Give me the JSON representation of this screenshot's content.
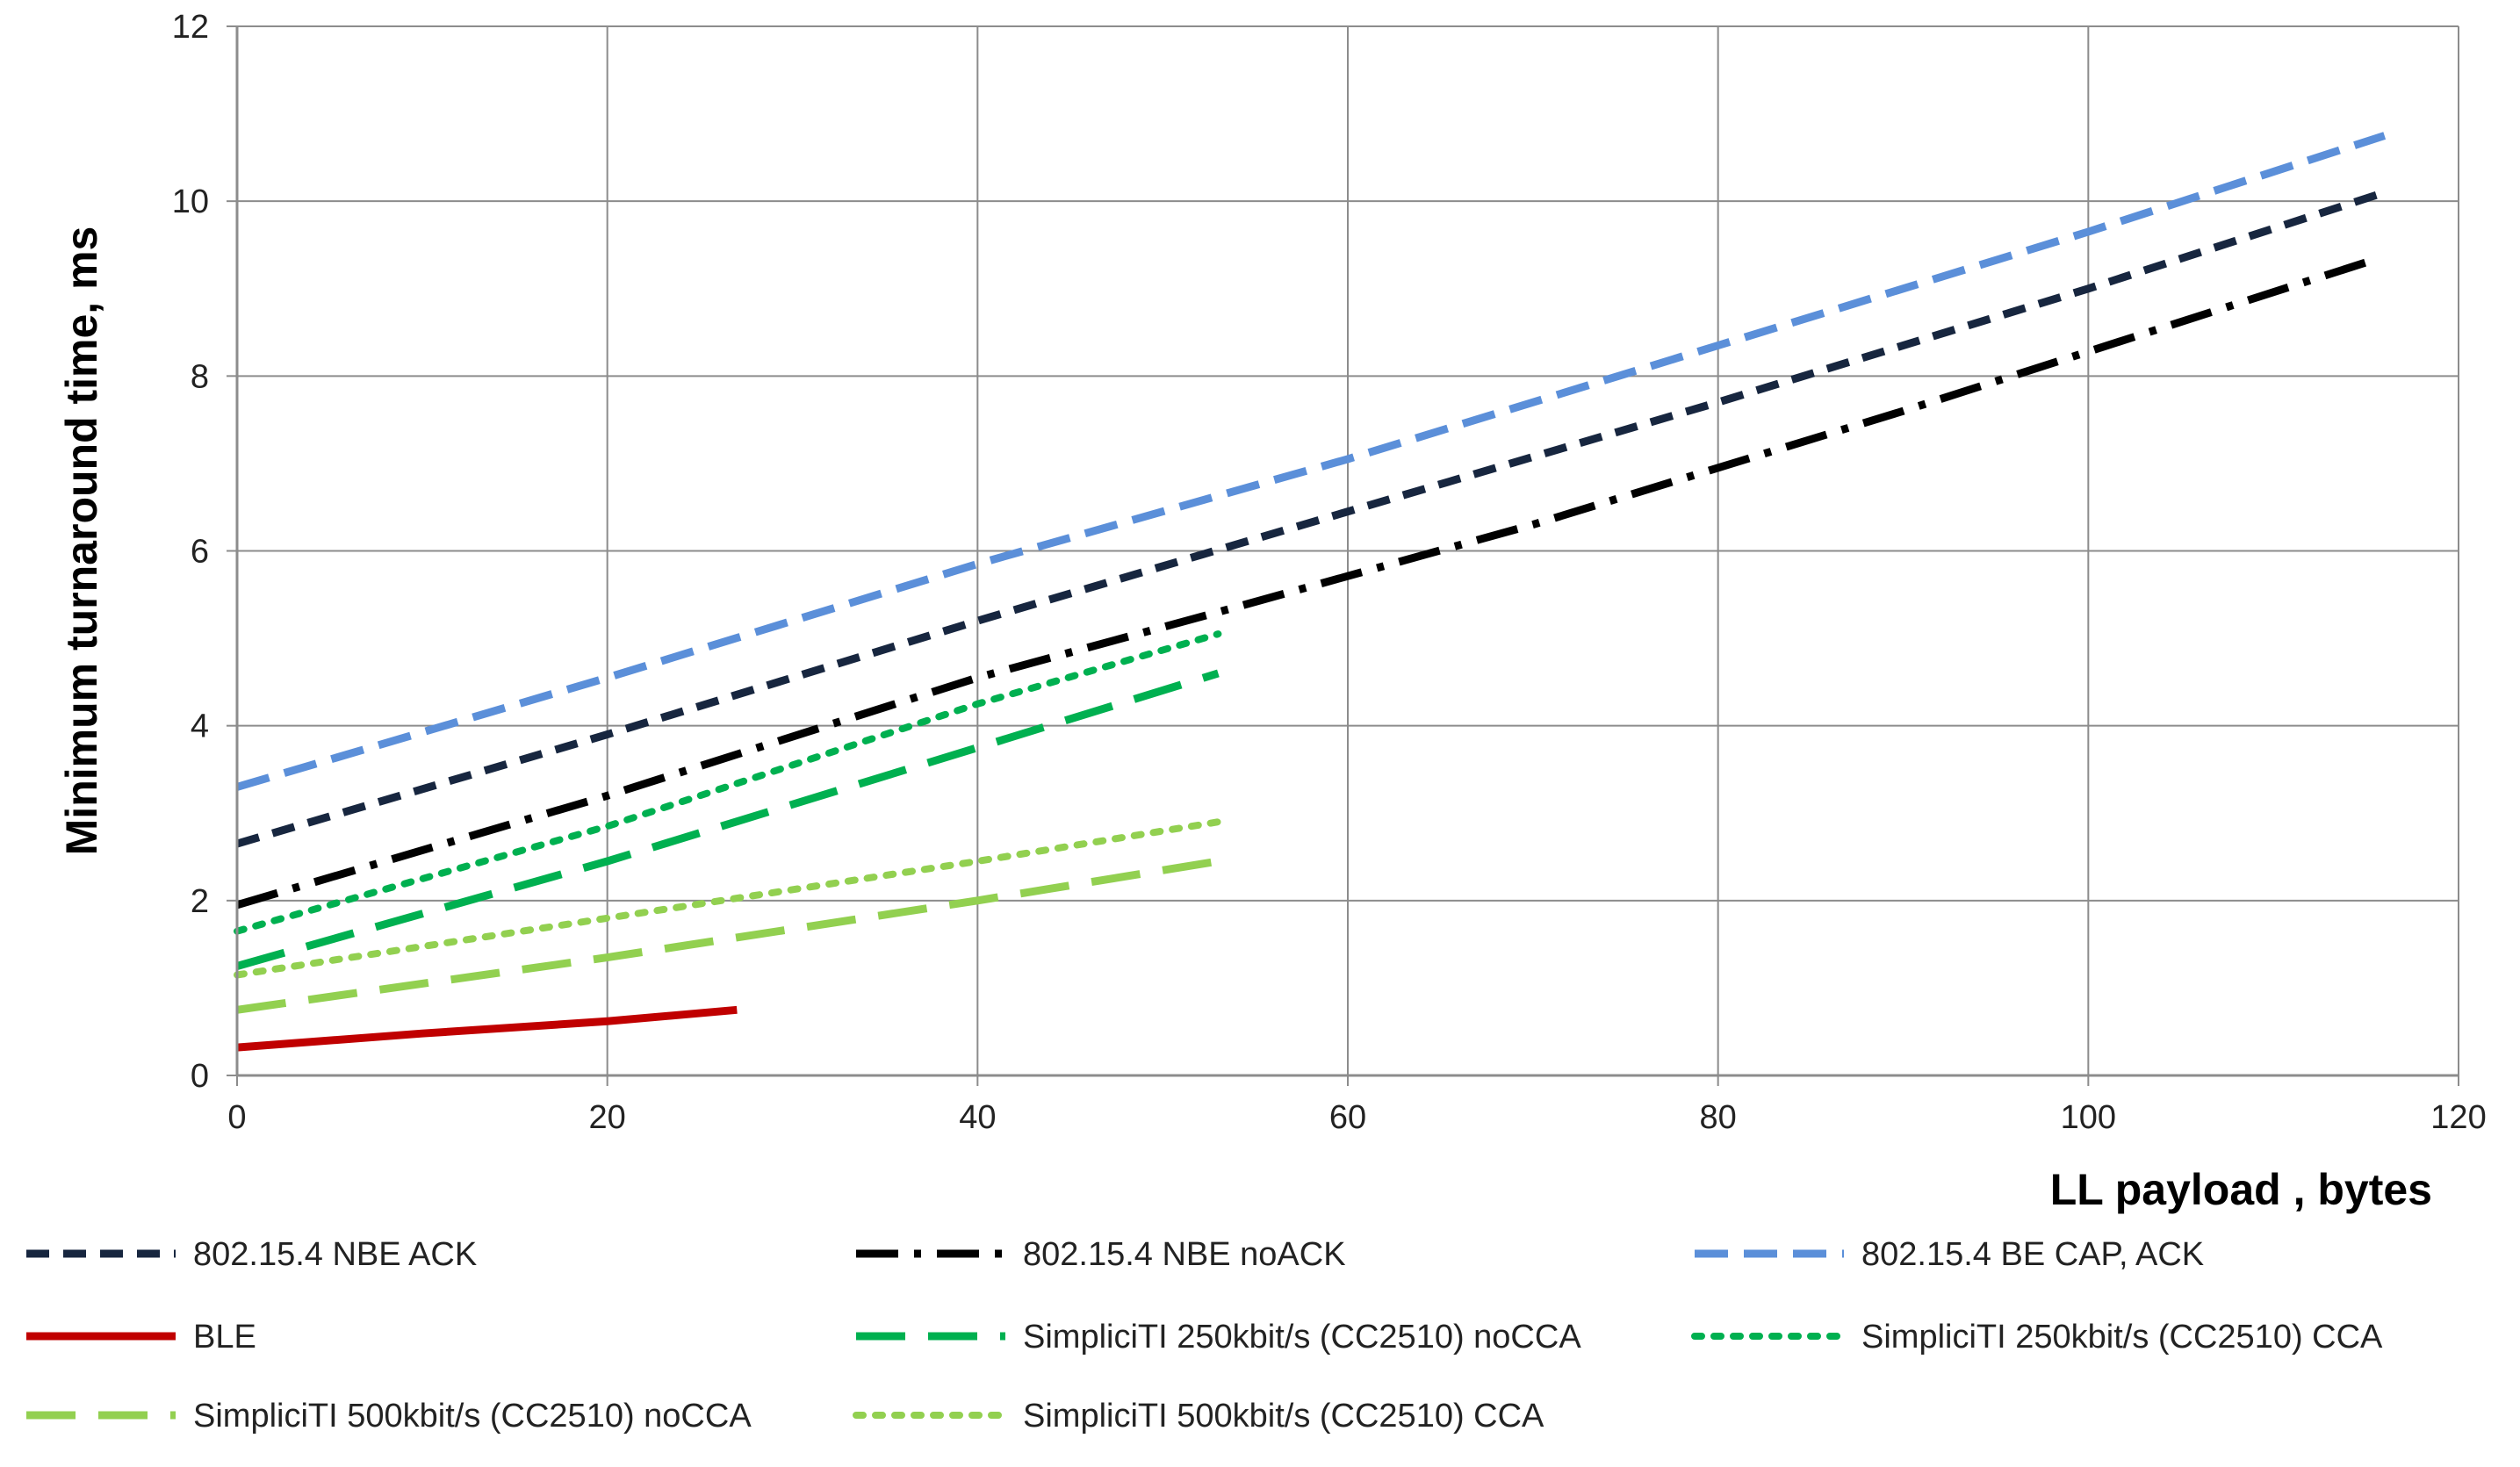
{
  "chart_data": {
    "type": "line",
    "title": "",
    "xlabel": "LL payload , bytes",
    "ylabel": "Minimum turnaround time, ms",
    "xlim": [
      0,
      120
    ],
    "ylim": [
      0,
      12
    ],
    "x_ticks": [
      "0",
      "20",
      "40",
      "60",
      "80",
      "100",
      "120"
    ],
    "y_ticks": [
      "0",
      "2",
      "4",
      "6",
      "8",
      "10",
      "12"
    ],
    "grid": true,
    "legend_position": "bottom",
    "series": [
      {
        "name": "802.15.4 NBE ACK",
        "color": "#17263f",
        "style": "short-dash",
        "points": [
          [
            0,
            2.65
          ],
          [
            20,
            3.9
          ],
          [
            40,
            5.2
          ],
          [
            60,
            6.45
          ],
          [
            80,
            7.7
          ],
          [
            100,
            9.0
          ],
          [
            116,
            10.1
          ]
        ]
      },
      {
        "name": "802.15.4 NBE noACK",
        "color": "#000000",
        "style": "dash-dot",
        "points": [
          [
            0,
            1.95
          ],
          [
            20,
            3.2
          ],
          [
            40,
            4.55
          ],
          [
            53,
            5.3
          ],
          [
            70,
            6.3
          ],
          [
            90,
            7.6
          ],
          [
            115,
            9.3
          ]
        ]
      },
      {
        "name": "802.15.4 BE CAP,  ACK",
        "color": "#5b8fd9",
        "style": "dash",
        "points": [
          [
            0,
            3.3
          ],
          [
            20,
            4.55
          ],
          [
            40,
            5.85
          ],
          [
            60,
            7.05
          ],
          [
            80,
            8.35
          ],
          [
            100,
            9.65
          ],
          [
            116,
            10.75
          ]
        ]
      },
      {
        "name": "BLE",
        "color": "#c00000",
        "style": "solid",
        "points": [
          [
            0,
            0.32
          ],
          [
            10,
            0.48
          ],
          [
            20,
            0.62
          ],
          [
            27,
            0.75
          ]
        ]
      },
      {
        "name": "SimpliciTI 250kbit/s (CC2510) noCCA",
        "color": "#00b050",
        "style": "long-dash",
        "points": [
          [
            0,
            1.25
          ],
          [
            20,
            2.45
          ],
          [
            40,
            3.75
          ],
          [
            53,
            4.6
          ]
        ]
      },
      {
        "name": "SimpliciTI 250kbit/s (CC2510) CCA",
        "color": "#00b050",
        "style": "dot",
        "points": [
          [
            0,
            1.65
          ],
          [
            20,
            2.85
          ],
          [
            40,
            4.25
          ],
          [
            53,
            5.05
          ]
        ]
      },
      {
        "name": "SimpliciTI 500kbit/s (CC2510) noCCA",
        "color": "#92d050",
        "style": "long-dash",
        "points": [
          [
            0,
            0.75
          ],
          [
            20,
            1.35
          ],
          [
            40,
            2.0
          ],
          [
            53,
            2.45
          ]
        ]
      },
      {
        "name": "SimpliciTI 500kbit/s (CC2510) CCA",
        "color": "#92d050",
        "style": "dot",
        "points": [
          [
            0,
            1.15
          ],
          [
            20,
            1.8
          ],
          [
            40,
            2.45
          ],
          [
            53,
            2.9
          ]
        ]
      }
    ]
  }
}
